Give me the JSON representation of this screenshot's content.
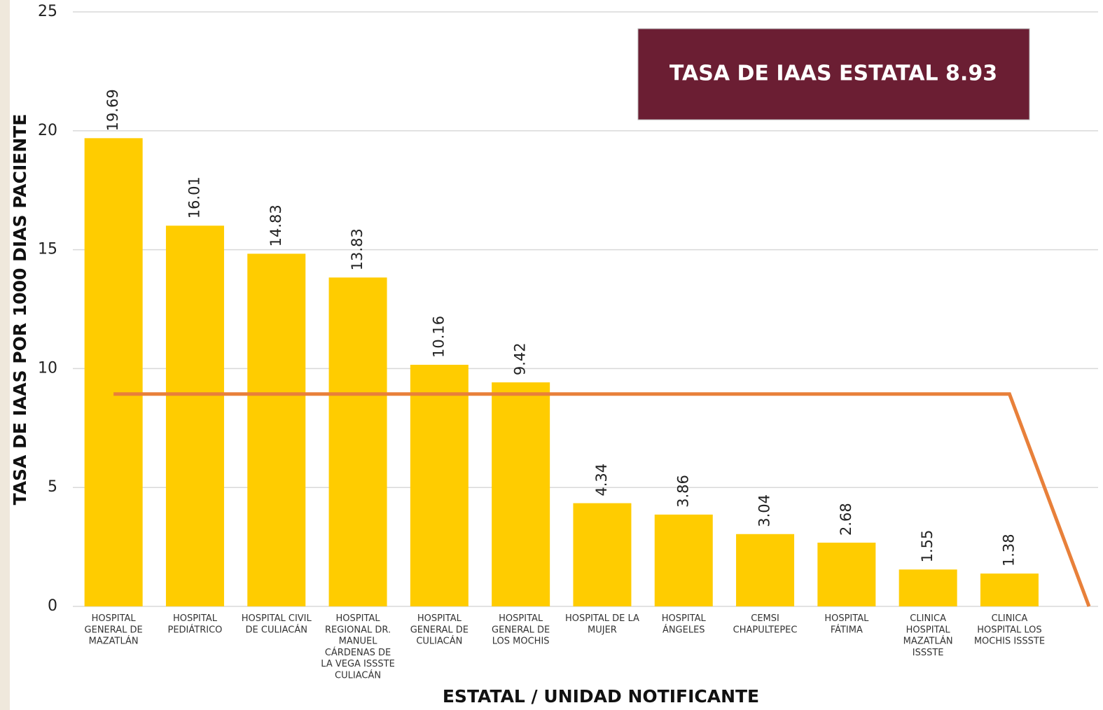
{
  "chart_data": {
    "type": "bar",
    "annotation": "TASA DE IAAS ESTATAL 8.93",
    "y_label": "TASA DE IAAS POR 1000 DIAS PACIENTE",
    "x_label": "ESTATAL / UNIDAD NOTIFICANTE",
    "categories": [
      "HOSPITAL\nGENERAL DE\nMAZATLÁN",
      "HOSPITAL\nPEDIÁTRICO",
      "HOSPITAL CIVIL\nDE CULIACÁN",
      "HOSPITAL\nREGIONAL DR.\nMANUEL\nCÁRDENAS DE\nLA VEGA ISSSTE\nCULIACÁN",
      "HOSPITAL\nGENERAL DE\nCULIACÁN",
      "HOSPITAL\nGENERAL DE\nLOS MOCHIS",
      "HOSPITAL DE LA\nMUJER",
      "HOSPITAL\nÁNGELES",
      "CEMSI\nCHAPULTEPEC",
      "HOSPITAL\nFÁTIMA",
      "CLINICA\nHOSPITAL\nMAZATLÁN\nISSSTE",
      "CLINICA\nHOSPITAL LOS\nMOCHIS ISSSTE",
      null
    ],
    "values": [
      19.69,
      16.01,
      14.83,
      13.83,
      10.16,
      9.42,
      4.34,
      3.86,
      3.04,
      2.68,
      1.55,
      1.38,
      null
    ],
    "color": "#FFCC00",
    "line": {
      "color": "#E8803A",
      "values": [
        8.93,
        8.93,
        8.93,
        8.93,
        8.93,
        8.93,
        8.93,
        8.93,
        8.93,
        8.93,
        8.93,
        8.93,
        0
      ]
    },
    "ylim": [
      0,
      25
    ],
    "yticks": [
      0,
      5,
      10,
      15,
      20,
      25
    ],
    "grid": true
  }
}
